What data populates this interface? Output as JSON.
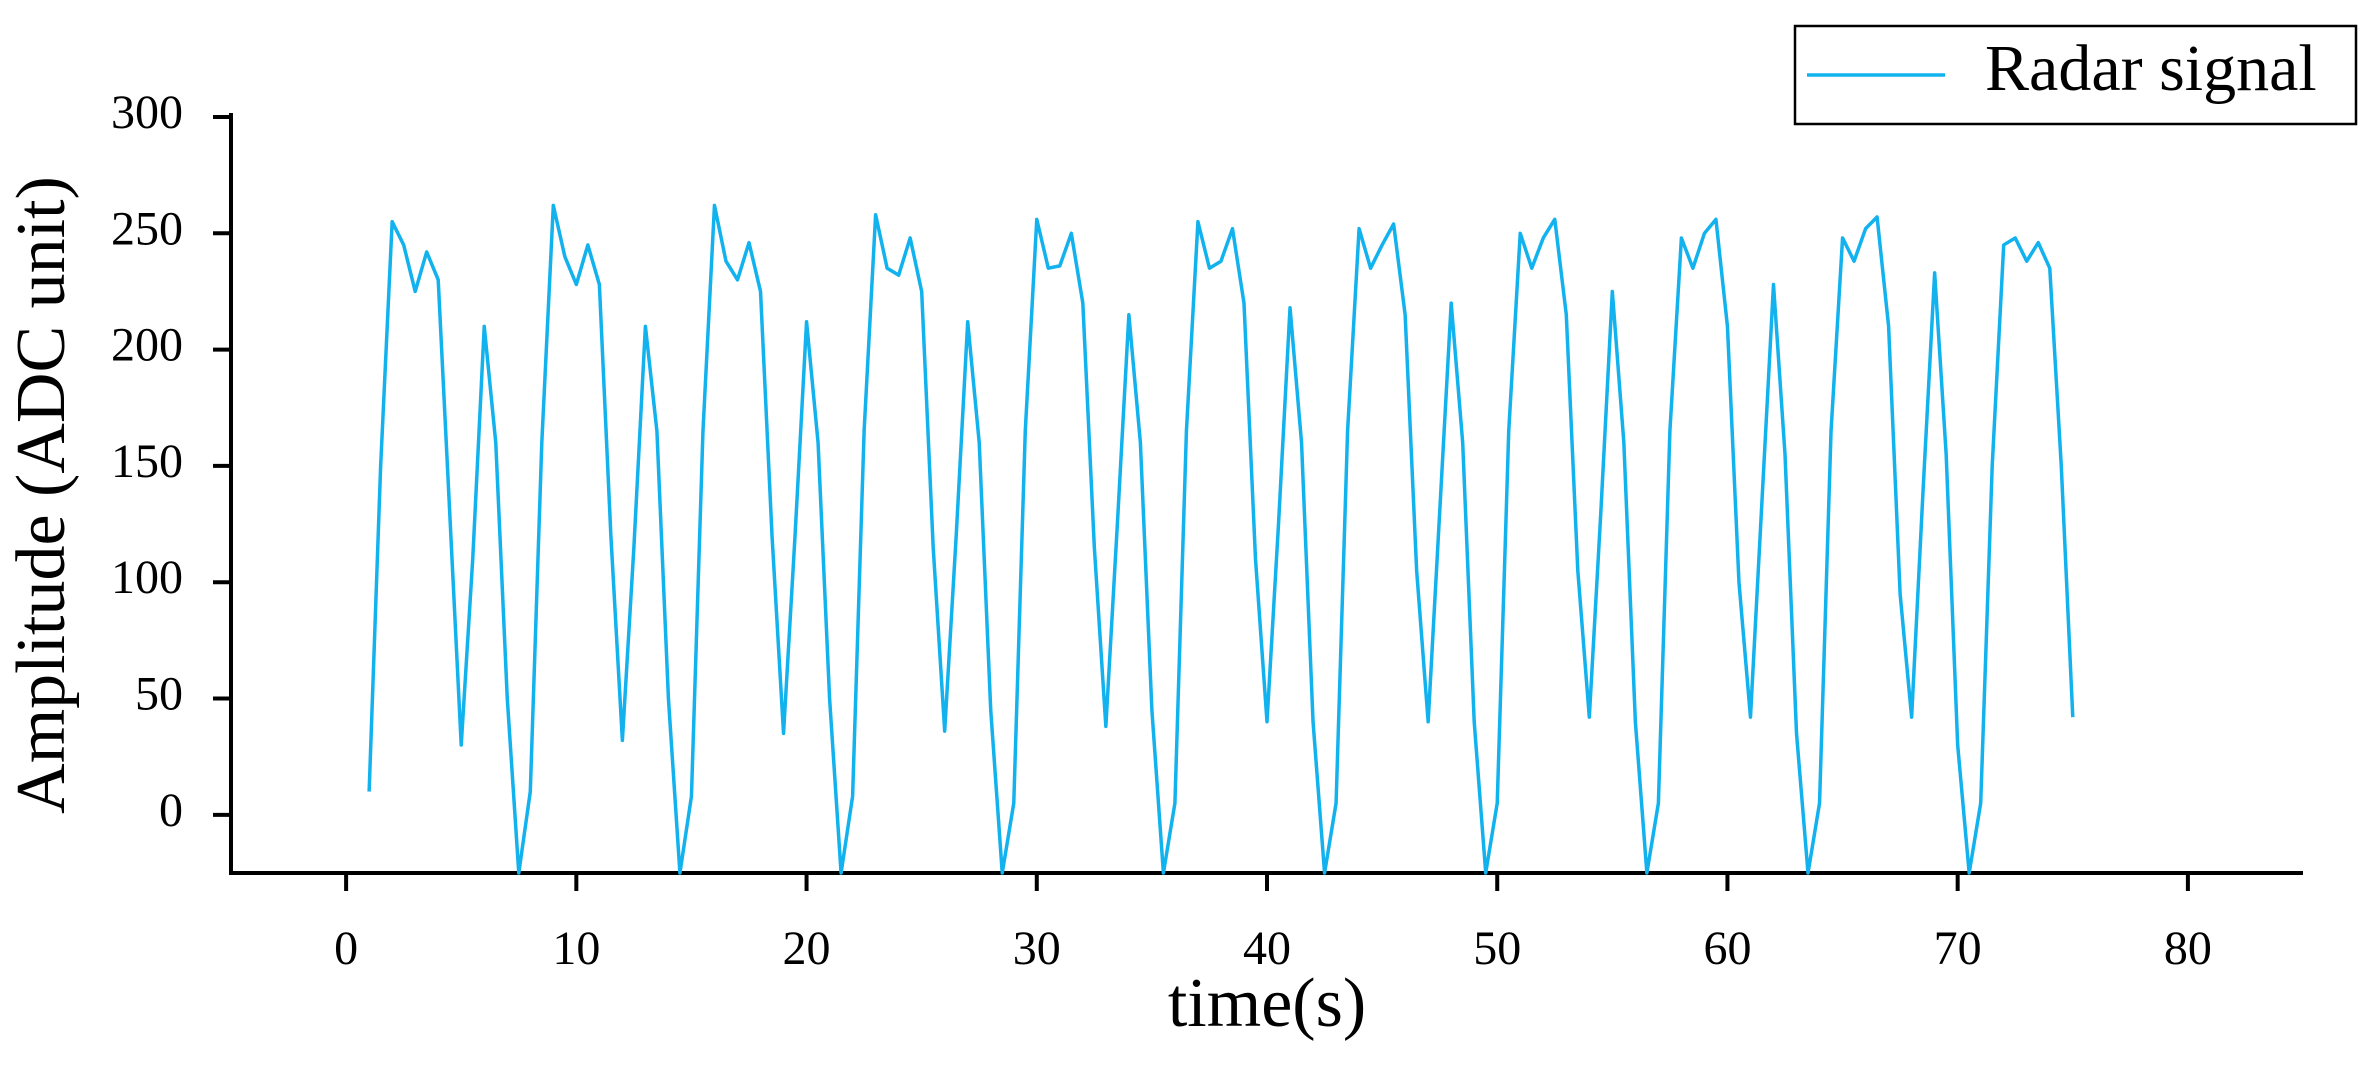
{
  "chart_data": {
    "type": "line",
    "xlabel": "time(s)",
    "ylabel": "Amplitude (ADC unit)",
    "x": [
      1,
      1.5,
      2,
      2.5,
      3,
      3.5,
      4,
      4.5,
      5,
      5.5,
      6,
      6.5,
      7,
      7.5,
      8,
      8.5,
      9,
      9.5,
      10,
      10.5,
      11,
      11.5,
      12,
      12.5,
      13,
      13.5,
      14,
      14.5,
      15,
      15.5,
      16,
      16.5,
      17,
      17.5,
      18,
      18.5,
      19,
      19.5,
      20,
      20.5,
      21,
      21.5,
      22,
      22.5,
      23,
      23.5,
      24,
      24.5,
      25,
      25.5,
      26,
      26.5,
      27,
      27.5,
      28,
      28.5,
      29,
      29.5,
      30,
      30.5,
      31,
      31.5,
      32,
      32.5,
      33,
      33.5,
      34,
      34.5,
      35,
      35.5,
      36,
      36.5,
      37,
      37.5,
      38,
      38.5,
      39,
      39.5,
      40,
      40.5,
      41,
      41.5,
      42,
      42.5,
      43,
      43.5,
      44,
      44.5,
      45,
      45.5,
      46,
      46.5,
      47,
      47.5,
      48,
      48.5,
      49,
      49.5,
      50,
      50.5,
      51,
      51.5,
      52,
      52.5,
      53,
      53.5,
      54,
      54.5,
      55,
      55.5,
      56,
      56.5,
      57,
      57.5,
      58,
      58.5,
      59,
      59.5,
      60,
      60.5,
      61,
      61.5,
      62,
      62.5,
      63,
      63.5,
      64,
      64.5,
      65,
      65.5,
      66,
      66.5,
      67,
      67.5,
      68,
      68.5,
      69,
      69.5,
      70,
      70.5,
      71,
      71.5,
      72,
      72.5,
      73,
      73.5,
      74,
      74.5,
      75
    ],
    "series": [
      {
        "name": "Radar signal",
        "color": "#12b2ee",
        "values": [
          10,
          150,
          255,
          245,
          225,
          242,
          230,
          130,
          30,
          110,
          210,
          160,
          50,
          -25,
          10,
          160,
          262,
          240,
          228,
          245,
          228,
          120,
          32,
          115,
          210,
          165,
          50,
          -25,
          8,
          165,
          262,
          238,
          230,
          246,
          225,
          120,
          35,
          120,
          212,
          160,
          50,
          -25,
          8,
          165,
          258,
          235,
          232,
          248,
          225,
          115,
          36,
          120,
          212,
          160,
          45,
          -25,
          5,
          165,
          256,
          235,
          236,
          250,
          220,
          115,
          38,
          125,
          215,
          160,
          45,
          -25,
          5,
          165,
          255,
          235,
          238,
          252,
          220,
          110,
          40,
          125,
          218,
          160,
          40,
          -25,
          5,
          165,
          252,
          235,
          245,
          254,
          215,
          105,
          40,
          130,
          220,
          160,
          40,
          -25,
          5,
          165,
          250,
          235,
          248,
          256,
          215,
          105,
          42,
          130,
          225,
          160,
          40,
          -25,
          5,
          165,
          248,
          235,
          250,
          256,
          210,
          100,
          42,
          135,
          228,
          155,
          35,
          -25,
          5,
          165,
          248,
          238,
          252,
          257,
          210,
          95,
          42,
          140,
          233,
          155,
          30,
          -25,
          5,
          150,
          245,
          248,
          238,
          246,
          235,
          150,
          42
        ]
      }
    ],
    "xlim": [
      -5,
      85
    ],
    "xticks": [
      0,
      10,
      20,
      30,
      40,
      50,
      60,
      70,
      80
    ],
    "ylim": [
      -25,
      300
    ],
    "yticks": [
      0,
      50,
      100,
      150,
      200,
      250,
      300
    ],
    "legend": "top-right"
  }
}
